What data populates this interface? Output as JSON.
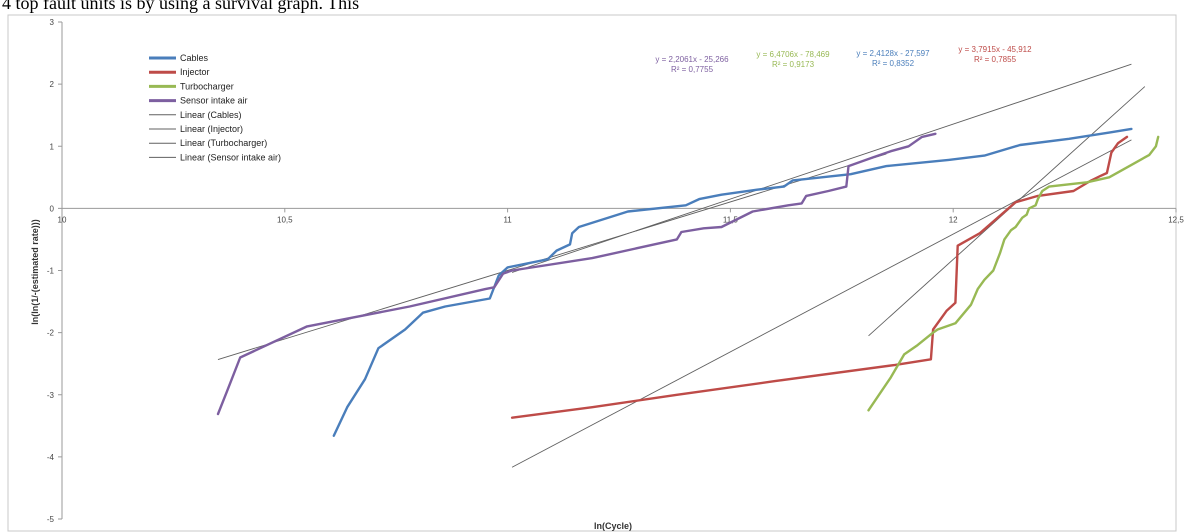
{
  "page_caption": "4 top fault units is by using a survival graph. This",
  "colors": {
    "cables": "#4a7ebb",
    "injector": "#be4b48",
    "turbocharger": "#98b954",
    "sensor": "#7d5fa0",
    "trend": "#606060"
  },
  "chart_data": {
    "type": "line",
    "title": "",
    "xlabel": "ln(Cycle)",
    "ylabel": "ln(ln(1/-(estimated rate)))",
    "xlim": [
      10,
      12.5
    ],
    "ylim": [
      -5,
      3
    ],
    "x_ticks": [
      "10",
      "10,5",
      "11",
      "11,5",
      "12",
      "12,5"
    ],
    "y_ticks": [
      "3",
      "2",
      "1",
      "0",
      "-1",
      "-2",
      "-3",
      "-4",
      "-5"
    ],
    "legend_position": "top-left",
    "legend": [
      "Cables",
      "Injector",
      "Turbocharger",
      "Sensor intake air",
      "Linear (Cables)",
      "Linear (Injector)",
      "Linear (Turbocharger)",
      "Linear (Sensor intake air)"
    ],
    "series": [
      {
        "name": "Cables",
        "color_key": "cables",
        "points": [
          [
            10.61,
            -3.66
          ],
          [
            10.64,
            -3.2
          ],
          [
            10.68,
            -2.75
          ],
          [
            10.71,
            -2.25
          ],
          [
            10.77,
            -1.95
          ],
          [
            10.81,
            -1.68
          ],
          [
            10.86,
            -1.58
          ],
          [
            10.96,
            -1.45
          ],
          [
            10.98,
            -1.08
          ],
          [
            11.0,
            -0.95
          ],
          [
            11.09,
            -0.82
          ],
          [
            11.11,
            -0.68
          ],
          [
            11.14,
            -0.58
          ],
          [
            11.145,
            -0.4
          ],
          [
            11.16,
            -0.3
          ],
          [
            11.27,
            -0.05
          ],
          [
            11.4,
            0.05
          ],
          [
            11.43,
            0.15
          ],
          [
            11.48,
            0.22
          ],
          [
            11.56,
            0.3
          ],
          [
            11.62,
            0.35
          ],
          [
            11.64,
            0.45
          ],
          [
            11.77,
            0.55
          ],
          [
            11.85,
            0.68
          ],
          [
            11.99,
            0.78
          ],
          [
            12.07,
            0.85
          ],
          [
            12.15,
            1.02
          ],
          [
            12.26,
            1.12
          ],
          [
            12.35,
            1.22
          ],
          [
            12.4,
            1.28
          ]
        ]
      },
      {
        "name": "Injector",
        "color_key": "injector",
        "points": [
          [
            11.01,
            -3.37
          ],
          [
            11.19,
            -3.2
          ],
          [
            11.38,
            -3.0
          ],
          [
            11.6,
            -2.78
          ],
          [
            11.87,
            -2.52
          ],
          [
            11.95,
            -2.43
          ],
          [
            11.955,
            -1.95
          ],
          [
            11.985,
            -1.65
          ],
          [
            12.005,
            -1.52
          ],
          [
            12.01,
            -0.6
          ],
          [
            12.06,
            -0.4
          ],
          [
            12.14,
            0.1
          ],
          [
            12.19,
            0.2
          ],
          [
            12.27,
            0.28
          ],
          [
            12.31,
            0.45
          ],
          [
            12.33,
            0.52
          ],
          [
            12.345,
            0.57
          ],
          [
            12.355,
            0.9
          ],
          [
            12.37,
            1.05
          ],
          [
            12.39,
            1.15
          ]
        ]
      },
      {
        "name": "Turbocharger",
        "color_key": "turbocharger",
        "points": [
          [
            11.81,
            -3.25
          ],
          [
            11.86,
            -2.72
          ],
          [
            11.89,
            -2.35
          ],
          [
            11.92,
            -2.2
          ],
          [
            11.955,
            -2.0
          ],
          [
            11.965,
            -1.95
          ],
          [
            12.005,
            -1.85
          ],
          [
            12.04,
            -1.55
          ],
          [
            12.055,
            -1.3
          ],
          [
            12.07,
            -1.15
          ],
          [
            12.09,
            -1.0
          ],
          [
            12.105,
            -0.72
          ],
          [
            12.115,
            -0.5
          ],
          [
            12.13,
            -0.35
          ],
          [
            12.14,
            -0.3
          ],
          [
            12.155,
            -0.15
          ],
          [
            12.165,
            -0.1
          ],
          [
            12.17,
            0.0
          ],
          [
            12.185,
            0.05
          ],
          [
            12.19,
            0.15
          ],
          [
            12.2,
            0.28
          ],
          [
            12.215,
            0.35
          ],
          [
            12.3,
            0.42
          ],
          [
            12.35,
            0.5
          ],
          [
            12.4,
            0.7
          ],
          [
            12.44,
            0.86
          ],
          [
            12.455,
            1.0
          ],
          [
            12.46,
            1.15
          ]
        ]
      },
      {
        "name": "Sensor intake air",
        "color_key": "sensor",
        "points": [
          [
            10.35,
            -3.31
          ],
          [
            10.37,
            -2.95
          ],
          [
            10.4,
            -2.4
          ],
          [
            10.55,
            -1.9
          ],
          [
            10.78,
            -1.58
          ],
          [
            10.95,
            -1.3
          ],
          [
            10.97,
            -1.27
          ],
          [
            10.99,
            -1.05
          ],
          [
            11.01,
            -1.0
          ],
          [
            11.19,
            -0.8
          ],
          [
            11.38,
            -0.5
          ],
          [
            11.39,
            -0.38
          ],
          [
            11.44,
            -0.32
          ],
          [
            11.48,
            -0.3
          ],
          [
            11.55,
            -0.05
          ],
          [
            11.63,
            0.05
          ],
          [
            11.66,
            0.08
          ],
          [
            11.67,
            0.2
          ],
          [
            11.72,
            0.28
          ],
          [
            11.76,
            0.35
          ],
          [
            11.765,
            0.68
          ],
          [
            11.82,
            0.82
          ],
          [
            11.86,
            0.92
          ],
          [
            11.9,
            1.0
          ],
          [
            11.93,
            1.15
          ],
          [
            11.96,
            1.2
          ]
        ]
      }
    ],
    "trendlines": [
      {
        "name": "Linear (Cables)",
        "slope": 2.2061,
        "intercept": -25.266,
        "x_range": [
          10.35,
          11.85
        ],
        "equation": "y = 2,2061x - 25,266",
        "r2": "R² = 0,7755",
        "color_key": "sensor"
      },
      {
        "name": "Linear (Injector)",
        "slope": 2.4128,
        "intercept": -27.597,
        "x_range": [
          11.01,
          12.4
        ],
        "equation": "y = 2,4128x - 27,597",
        "r2": "R² = 0,8352",
        "color_key": "cables"
      },
      {
        "name": "Linear (Turbocharger)",
        "slope": 6.4706,
        "intercept": -78.469,
        "x_range": [
          11.81,
          12.43
        ],
        "equation": "y = 6,4706x - 78,469",
        "r2": "R² = 0,9173",
        "color_key": "turbocharger"
      },
      {
        "name": "Linear (Sensor intake air)",
        "slope": 3.7915,
        "intercept": -45.912,
        "x_range": [
          11.01,
          12.4
        ],
        "equation": "y = 3,7915x - 45,912",
        "r2": "R² = 0,7855",
        "color_key": "injector"
      }
    ]
  }
}
